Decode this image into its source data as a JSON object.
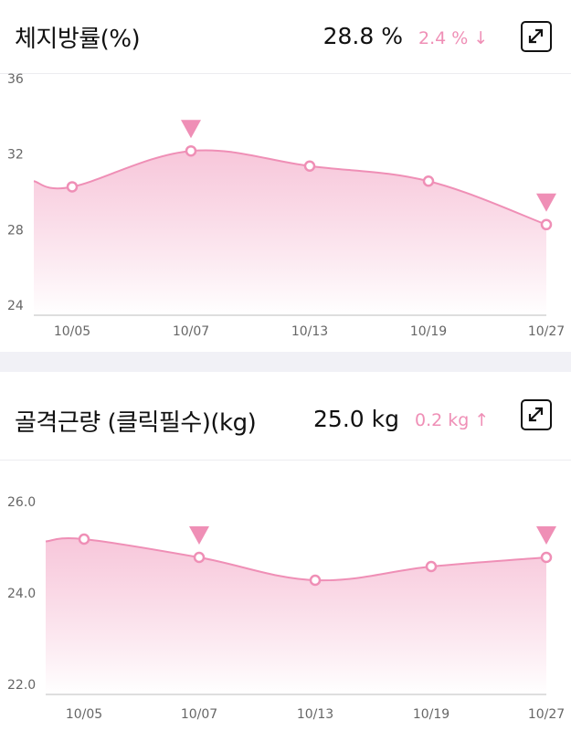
{
  "fat": {
    "title": "체지방률(%)",
    "value": "28.8 %",
    "change": "2.4 % ↓",
    "expand_icon": "expand-icon"
  },
  "muscle": {
    "title": "골격근량 (클릭필수)(kg)",
    "value": "25.0 kg",
    "change": "0.2 kg ↑",
    "expand_icon": "expand-icon"
  },
  "colors": {
    "line": "#ef8fb6",
    "fill_top": "#f6bdd4",
    "marker": "#ef8fb6"
  },
  "chart_data": [
    {
      "type": "area",
      "categories": [
        "10/05",
        "10/07",
        "10/13",
        "10/19",
        "10/27"
      ],
      "values": [
        30.8,
        32.7,
        31.9,
        31.1,
        28.8
      ],
      "marked": [
        false,
        true,
        false,
        false,
        true
      ],
      "start_value": 31.1,
      "yticks": [
        "36",
        "32",
        "28",
        "24"
      ],
      "ylim": [
        24,
        36
      ],
      "grid": false
    },
    {
      "type": "area",
      "categories": [
        "10/05",
        "10/07",
        "10/13",
        "10/19",
        "10/27"
      ],
      "values": [
        25.4,
        25.0,
        24.5,
        24.8,
        25.0
      ],
      "marked": [
        false,
        true,
        false,
        false,
        true
      ],
      "start_value": 25.35,
      "yticks": [
        "26.0",
        "24.0",
        "22.0"
      ],
      "ylim": [
        22,
        26.5
      ],
      "grid": false
    }
  ]
}
